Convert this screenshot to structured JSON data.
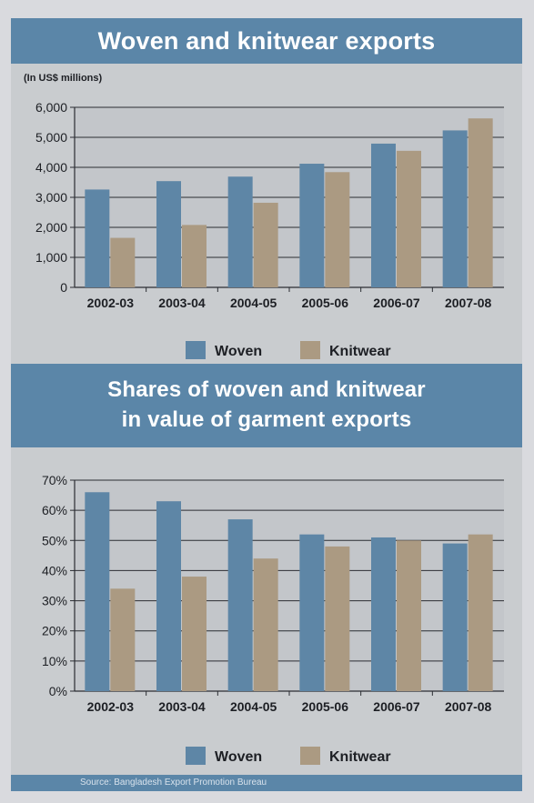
{
  "charts": [
    {
      "title_lines": [
        "Woven and knitwear exports"
      ],
      "unit_note": "(In US$ millions)",
      "legend": {
        "woven": "Woven",
        "knitwear": "Knitwear"
      }
    },
    {
      "title_lines": [
        "Shares of woven and knitwear",
        "in value of garment exports"
      ],
      "legend": {
        "woven": "Woven",
        "knitwear": "Knitwear"
      }
    }
  ],
  "source": "Source: Bangladesh Export Promotion Bureau",
  "colors": {
    "woven": "#5e86a6",
    "knitwear": "#ab9a82",
    "band": "#5b86a8",
    "plot_bg": "#c3c6ca"
  },
  "chart_data": [
    {
      "type": "bar",
      "title": "Woven and knitwear exports",
      "ylabel": "(In US$ millions)",
      "categories": [
        "2002-03",
        "2003-04",
        "2004-05",
        "2005-06",
        "2006-07",
        "2007-08"
      ],
      "series": [
        {
          "name": "Woven",
          "values": [
            3260,
            3540,
            3690,
            4120,
            4790,
            5230
          ]
        },
        {
          "name": "Knitwear",
          "values": [
            1650,
            2080,
            2820,
            3840,
            4550,
            5630
          ]
        }
      ],
      "ylim": [
        0,
        6000
      ],
      "yticks": [
        0,
        1000,
        2000,
        3000,
        4000,
        5000,
        6000
      ],
      "ytick_labels": [
        "0",
        "1,000",
        "2,000",
        "3,000",
        "4,000",
        "5,000",
        "6,000"
      ],
      "grid": true,
      "legend_position": "bottom"
    },
    {
      "type": "bar",
      "title": "Shares of woven and knitwear in value of garment exports",
      "categories": [
        "2002-03",
        "2003-04",
        "2004-05",
        "2005-06",
        "2006-07",
        "2007-08"
      ],
      "series": [
        {
          "name": "Woven",
          "values": [
            66,
            63,
            57,
            52,
            51,
            49
          ]
        },
        {
          "name": "Knitwear",
          "values": [
            34,
            38,
            44,
            48,
            50,
            52
          ]
        }
      ],
      "ylim": [
        0,
        70
      ],
      "yticks": [
        0,
        10,
        20,
        30,
        40,
        50,
        60,
        70
      ],
      "ytick_labels": [
        "0%",
        "10%",
        "20%",
        "30%",
        "40%",
        "50%",
        "60%",
        "70%"
      ],
      "grid": true,
      "legend_position": "bottom"
    }
  ]
}
